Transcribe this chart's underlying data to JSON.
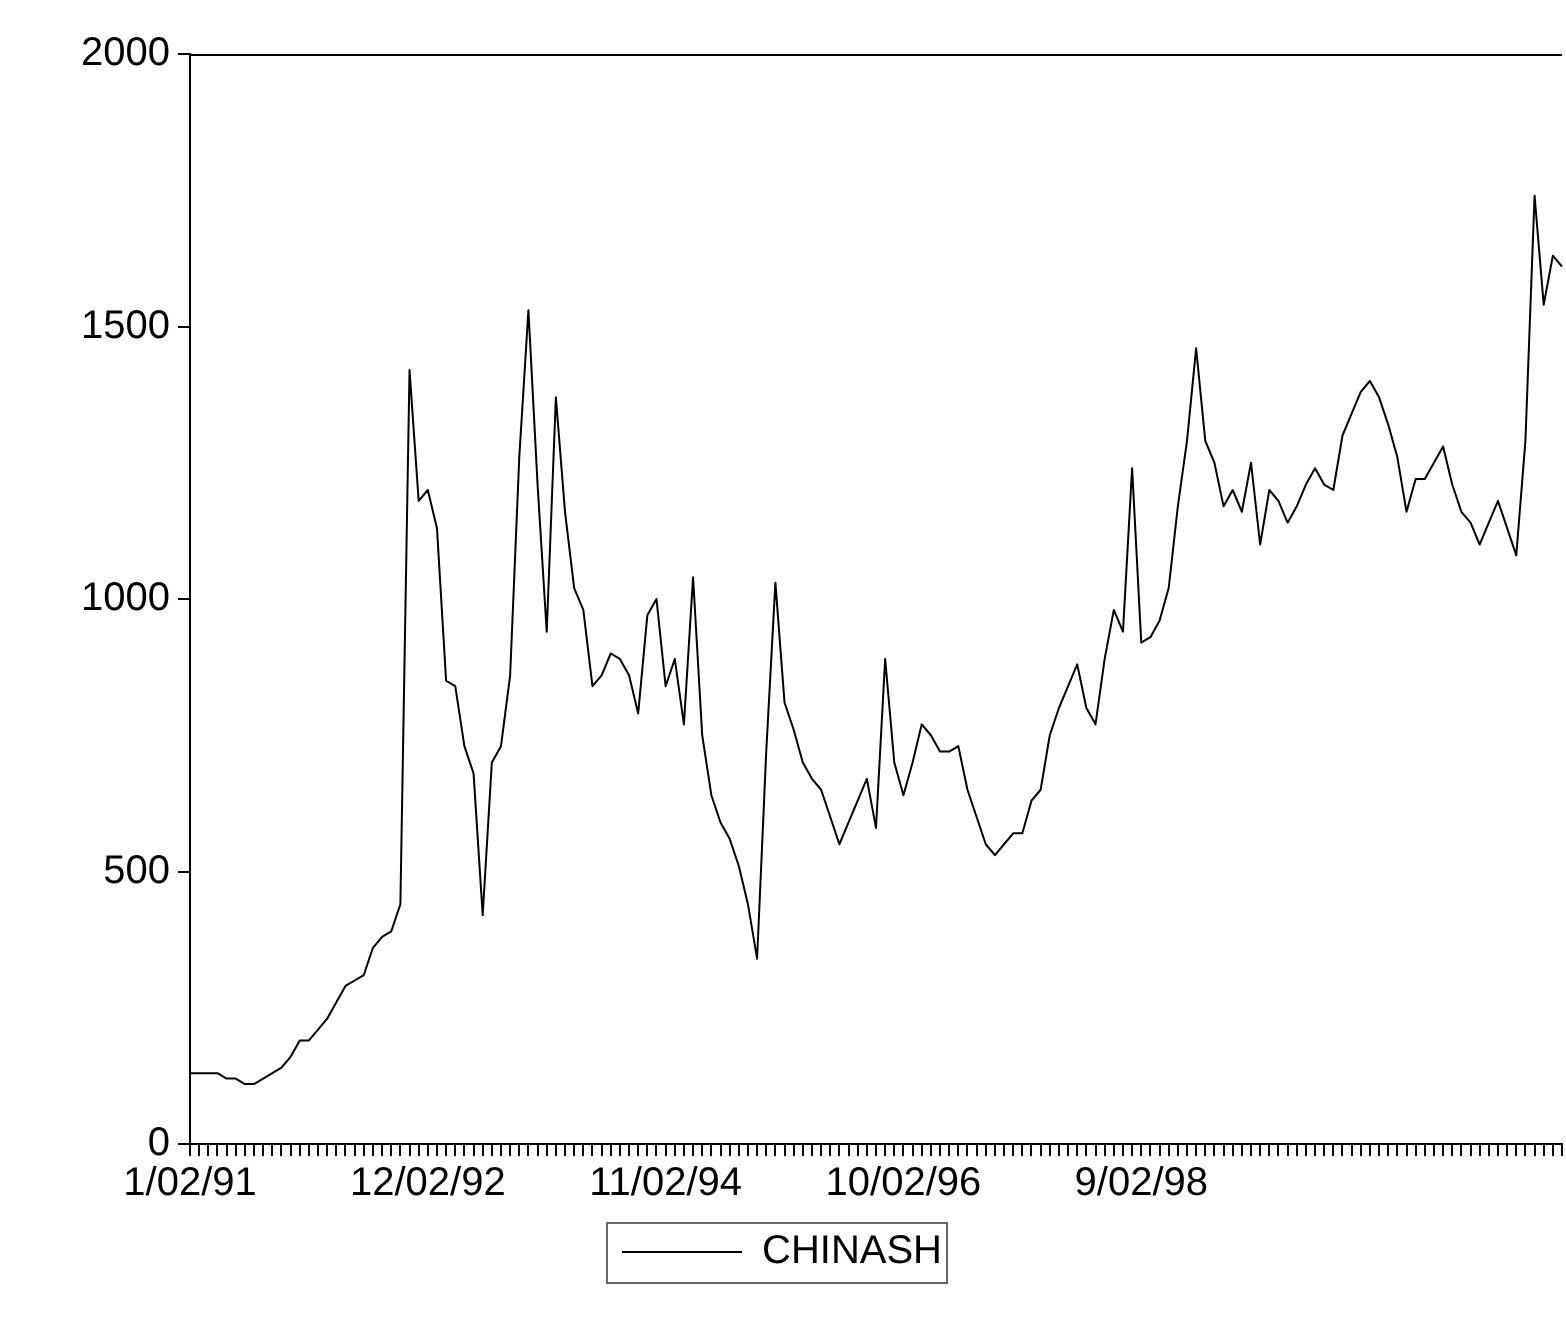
{
  "chart_data": {
    "type": "line",
    "legend": "bottom",
    "grid": false,
    "marker": "none",
    "line_style": "solid",
    "categories": [
      "1/02/91",
      null,
      null,
      null,
      null,
      null,
      null,
      null,
      null,
      null,
      null,
      null,
      null,
      null,
      null,
      null,
      null,
      null,
      null,
      null,
      null,
      null,
      null,
      null,
      null,
      null,
      "12/02/92",
      null,
      null,
      null,
      null,
      null,
      null,
      null,
      null,
      null,
      null,
      null,
      null,
      null,
      null,
      null,
      null,
      null,
      null,
      null,
      null,
      null,
      null,
      null,
      null,
      null,
      "11/02/94",
      null,
      null,
      null,
      null,
      null,
      null,
      null,
      null,
      null,
      null,
      null,
      null,
      null,
      null,
      null,
      null,
      null,
      null,
      null,
      null,
      null,
      null,
      null,
      null,
      null,
      "10/02/96",
      null,
      null,
      null,
      null,
      null,
      null,
      null,
      null,
      null,
      null,
      null,
      null,
      null,
      null,
      null,
      null,
      null,
      null,
      null,
      null,
      null,
      null,
      null,
      null,
      null,
      "9/02/98",
      null,
      null,
      null,
      null,
      null,
      null,
      null,
      null,
      null,
      null,
      null,
      null,
      null,
      null,
      null,
      null,
      null,
      null,
      null,
      null,
      null,
      null,
      null,
      null,
      null,
      null,
      null,
      null,
      null,
      null,
      null,
      null,
      null,
      null,
      null,
      null,
      null,
      null,
      null,
      null,
      null,
      null,
      null,
      null,
      null,
      null
    ],
    "ylim": [
      0,
      2000
    ],
    "yticks": [
      0,
      500,
      1000,
      1500,
      2000
    ],
    "series": [
      {
        "name": "CHINASH",
        "color": "#000000",
        "values": [
          130,
          130,
          130,
          130,
          120,
          120,
          110,
          110,
          120,
          130,
          140,
          160,
          190,
          190,
          210,
          230,
          260,
          290,
          300,
          310,
          360,
          380,
          390,
          440,
          1420,
          1180,
          1200,
          1130,
          850,
          840,
          730,
          680,
          420,
          700,
          730,
          860,
          1260,
          1530,
          1210,
          940,
          1370,
          1160,
          1020,
          980,
          840,
          860,
          900,
          890,
          860,
          790,
          970,
          1000,
          840,
          890,
          770,
          1040,
          750,
          640,
          590,
          560,
          510,
          440,
          340,
          720,
          1030,
          810,
          760,
          700,
          670,
          650,
          600,
          550,
          590,
          630,
          670,
          580,
          890,
          700,
          640,
          700,
          770,
          750,
          720,
          720,
          730,
          650,
          600,
          550,
          530,
          550,
          570,
          570,
          630,
          650,
          750,
          800,
          840,
          880,
          800,
          770,
          890,
          980,
          940,
          1240,
          920,
          930,
          960,
          1020,
          1170,
          1290,
          1460,
          1290,
          1250,
          1170,
          1200,
          1160,
          1250,
          1100,
          1200,
          1180,
          1140,
          1170,
          1210,
          1240,
          1210,
          1200,
          1300,
          1340,
          1380,
          1400,
          1370,
          1320,
          1260,
          1160,
          1220,
          1220,
          1250,
          1280,
          1210,
          1160,
          1140,
          1100,
          1140,
          1180,
          1130,
          1080,
          1290,
          1740,
          1540,
          1630,
          1610
        ]
      }
    ]
  }
}
